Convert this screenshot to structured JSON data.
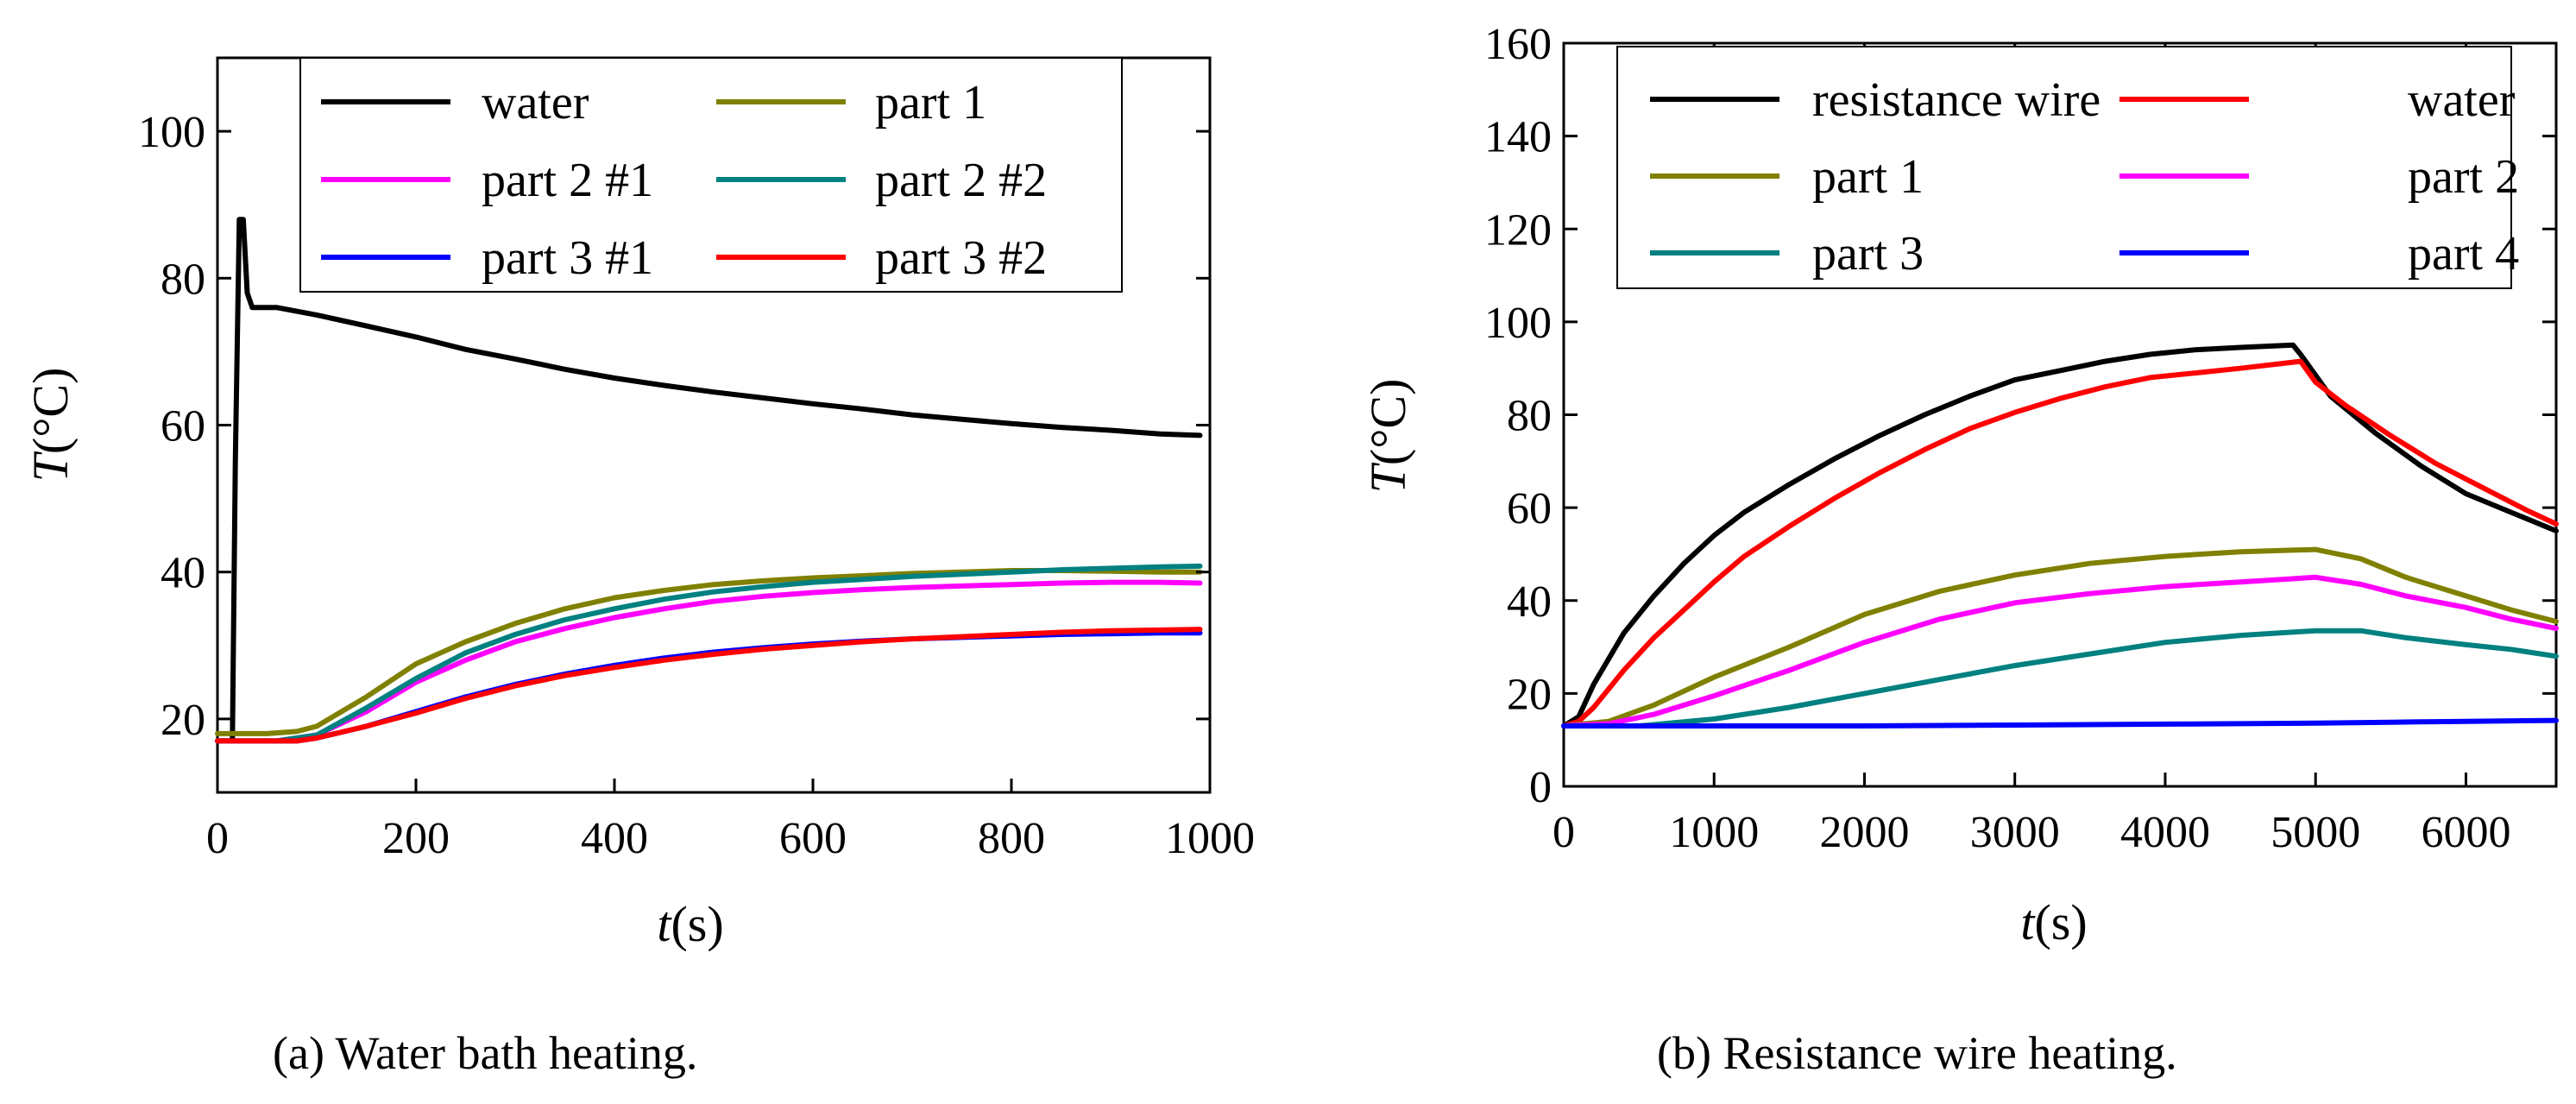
{
  "chart_data": [
    {
      "type": "line",
      "caption": "(a)    Water bath heating.",
      "xlabel_var": "t",
      "xlabel_unit": "(s)",
      "ylabel_var": "T",
      "ylabel_unit": "(°C)",
      "xlim": [
        0,
        1000
      ],
      "ylim": [
        10,
        110
      ],
      "xticks": [
        0,
        200,
        400,
        600,
        800,
        1000
      ],
      "yticks": [
        20,
        40,
        60,
        80,
        100
      ],
      "legend_position": "top",
      "series": [
        {
          "name": "water",
          "color": "#000000",
          "points": [
            [
              0,
              17
            ],
            [
              15,
              17
            ],
            [
              18,
              55
            ],
            [
              22,
              88
            ],
            [
              26,
              88
            ],
            [
              30,
              78
            ],
            [
              35,
              76
            ],
            [
              60,
              76
            ],
            [
              100,
              75
            ],
            [
              150,
              73.5
            ],
            [
              200,
              72
            ],
            [
              250,
              70.3
            ],
            [
              300,
              69
            ],
            [
              350,
              67.6
            ],
            [
              400,
              66.4
            ],
            [
              450,
              65.4
            ],
            [
              500,
              64.5
            ],
            [
              550,
              63.7
            ],
            [
              600,
              62.9
            ],
            [
              650,
              62.2
            ],
            [
              700,
              61.4
            ],
            [
              750,
              60.8
            ],
            [
              800,
              60.2
            ],
            [
              850,
              59.7
            ],
            [
              900,
              59.3
            ],
            [
              950,
              58.8
            ],
            [
              990,
              58.6
            ]
          ]
        },
        {
          "name": "part 1",
          "color": "#808000",
          "points": [
            [
              0,
              18
            ],
            [
              50,
              18
            ],
            [
              80,
              18.3
            ],
            [
              100,
              19
            ],
            [
              150,
              23
            ],
            [
              200,
              27.5
            ],
            [
              250,
              30.5
            ],
            [
              300,
              33
            ],
            [
              350,
              35
            ],
            [
              400,
              36.5
            ],
            [
              450,
              37.5
            ],
            [
              500,
              38.3
            ],
            [
              550,
              38.8
            ],
            [
              600,
              39.2
            ],
            [
              650,
              39.5
            ],
            [
              700,
              39.8
            ],
            [
              750,
              40
            ],
            [
              800,
              40.2
            ],
            [
              850,
              40.2
            ],
            [
              900,
              40.1
            ],
            [
              950,
              40
            ],
            [
              990,
              40
            ]
          ]
        },
        {
          "name": "part 2 #1",
          "color": "#ff00ff",
          "points": [
            [
              0,
              17
            ],
            [
              60,
              17
            ],
            [
              100,
              17.8
            ],
            [
              150,
              21
            ],
            [
              200,
              25
            ],
            [
              250,
              28
            ],
            [
              300,
              30.5
            ],
            [
              350,
              32.3
            ],
            [
              400,
              33.8
            ],
            [
              450,
              35
            ],
            [
              500,
              36
            ],
            [
              550,
              36.7
            ],
            [
              600,
              37.2
            ],
            [
              650,
              37.6
            ],
            [
              700,
              37.9
            ],
            [
              750,
              38.1
            ],
            [
              800,
              38.3
            ],
            [
              850,
              38.5
            ],
            [
              900,
              38.6
            ],
            [
              950,
              38.6
            ],
            [
              990,
              38.5
            ]
          ]
        },
        {
          "name": "part 2 #2",
          "color": "#008080",
          "points": [
            [
              0,
              17
            ],
            [
              60,
              17
            ],
            [
              100,
              17.8
            ],
            [
              150,
              21.5
            ],
            [
              200,
              25.5
            ],
            [
              250,
              29
            ],
            [
              300,
              31.5
            ],
            [
              350,
              33.5
            ],
            [
              400,
              35
            ],
            [
              450,
              36.3
            ],
            [
              500,
              37.3
            ],
            [
              550,
              38
            ],
            [
              600,
              38.6
            ],
            [
              650,
              39
            ],
            [
              700,
              39.4
            ],
            [
              750,
              39.7
            ],
            [
              800,
              40
            ],
            [
              850,
              40.3
            ],
            [
              900,
              40.5
            ],
            [
              950,
              40.7
            ],
            [
              990,
              40.8
            ]
          ]
        },
        {
          "name": "part 3 #1",
          "color": "#0000ff",
          "points": [
            [
              0,
              17
            ],
            [
              80,
              17
            ],
            [
              100,
              17.4
            ],
            [
              150,
              19
            ],
            [
              200,
              21
            ],
            [
              250,
              23
            ],
            [
              300,
              24.7
            ],
            [
              350,
              26.1
            ],
            [
              400,
              27.3
            ],
            [
              450,
              28.3
            ],
            [
              500,
              29.1
            ],
            [
              550,
              29.7
            ],
            [
              600,
              30.2
            ],
            [
              650,
              30.6
            ],
            [
              700,
              30.9
            ],
            [
              750,
              31.1
            ],
            [
              800,
              31.3
            ],
            [
              850,
              31.5
            ],
            [
              900,
              31.6
            ],
            [
              950,
              31.7
            ],
            [
              990,
              31.7
            ]
          ]
        },
        {
          "name": "part 3 #2",
          "color": "#ff0000",
          "points": [
            [
              0,
              17
            ],
            [
              80,
              17
            ],
            [
              100,
              17.4
            ],
            [
              150,
              19
            ],
            [
              200,
              20.8
            ],
            [
              250,
              22.8
            ],
            [
              300,
              24.5
            ],
            [
              350,
              25.9
            ],
            [
              400,
              27
            ],
            [
              450,
              28
            ],
            [
              500,
              28.8
            ],
            [
              550,
              29.5
            ],
            [
              600,
              30
            ],
            [
              650,
              30.5
            ],
            [
              700,
              30.9
            ],
            [
              750,
              31.2
            ],
            [
              800,
              31.5
            ],
            [
              850,
              31.8
            ],
            [
              900,
              32
            ],
            [
              950,
              32.1
            ],
            [
              990,
              32.2
            ]
          ]
        }
      ]
    },
    {
      "type": "line",
      "caption": "(b) Resistance wire heating.",
      "xlabel_var": "t",
      "xlabel_unit": "(s)",
      "ylabel_var": "T",
      "ylabel_unit": "(°C)",
      "xlim": [
        0,
        6600
      ],
      "ylim": [
        0,
        160
      ],
      "xticks": [
        0,
        1000,
        2000,
        3000,
        4000,
        5000,
        6000
      ],
      "yticks": [
        0,
        20,
        40,
        60,
        80,
        100,
        120,
        140,
        160
      ],
      "legend_position": "top",
      "series": [
        {
          "name": "resistance wire",
          "color": "#000000",
          "points": [
            [
              0,
              13
            ],
            [
              100,
              15
            ],
            [
              200,
              22
            ],
            [
              400,
              33
            ],
            [
              600,
              41
            ],
            [
              800,
              48
            ],
            [
              1000,
              54
            ],
            [
              1200,
              59
            ],
            [
              1500,
              65
            ],
            [
              1800,
              70.5
            ],
            [
              2100,
              75.5
            ],
            [
              2400,
              80
            ],
            [
              2700,
              84
            ],
            [
              3000,
              87.5
            ],
            [
              3300,
              89.5
            ],
            [
              3600,
              91.5
            ],
            [
              3900,
              93
            ],
            [
              4200,
              94
            ],
            [
              4500,
              94.5
            ],
            [
              4850,
              95
            ],
            [
              4900,
              93
            ],
            [
              5100,
              84
            ],
            [
              5400,
              76
            ],
            [
              5700,
              69
            ],
            [
              6000,
              63
            ],
            [
              6300,
              59
            ],
            [
              6600,
              55
            ]
          ]
        },
        {
          "name": "water",
          "color": "#ff0000",
          "points": [
            [
              0,
              13
            ],
            [
              100,
              14
            ],
            [
              200,
              17
            ],
            [
              400,
              25
            ],
            [
              600,
              32
            ],
            [
              800,
              38
            ],
            [
              1000,
              44
            ],
            [
              1200,
              49.5
            ],
            [
              1500,
              56
            ],
            [
              1800,
              62
            ],
            [
              2100,
              67.5
            ],
            [
              2400,
              72.5
            ],
            [
              2700,
              77
            ],
            [
              3000,
              80.5
            ],
            [
              3300,
              83.5
            ],
            [
              3600,
              86
            ],
            [
              3900,
              88
            ],
            [
              4200,
              89
            ],
            [
              4500,
              90
            ],
            [
              4900,
              91.5
            ],
            [
              5000,
              87
            ],
            [
              5200,
              82
            ],
            [
              5500,
              75.5
            ],
            [
              5800,
              69.5
            ],
            [
              6100,
              64.5
            ],
            [
              6400,
              59.5
            ],
            [
              6600,
              56.5
            ]
          ]
        },
        {
          "name": "part 1",
          "color": "#808000",
          "points": [
            [
              0,
              13
            ],
            [
              300,
              14
            ],
            [
              600,
              17.5
            ],
            [
              1000,
              23.5
            ],
            [
              1500,
              30
            ],
            [
              2000,
              37
            ],
            [
              2500,
              42
            ],
            [
              3000,
              45.5
            ],
            [
              3500,
              48
            ],
            [
              4000,
              49.5
            ],
            [
              4500,
              50.5
            ],
            [
              5000,
              51
            ],
            [
              5300,
              49
            ],
            [
              5600,
              45
            ],
            [
              6000,
              41
            ],
            [
              6300,
              38
            ],
            [
              6600,
              35.5
            ]
          ]
        },
        {
          "name": "part 2",
          "color": "#ff00ff",
          "points": [
            [
              0,
              13
            ],
            [
              300,
              13.5
            ],
            [
              600,
              15.5
            ],
            [
              1000,
              19.5
            ],
            [
              1500,
              25
            ],
            [
              2000,
              31
            ],
            [
              2500,
              36
            ],
            [
              3000,
              39.5
            ],
            [
              3500,
              41.5
            ],
            [
              4000,
              43
            ],
            [
              4500,
              44
            ],
            [
              5000,
              45
            ],
            [
              5300,
              43.5
            ],
            [
              5600,
              41
            ],
            [
              6000,
              38.5
            ],
            [
              6300,
              36
            ],
            [
              6600,
              34
            ]
          ]
        },
        {
          "name": "part 3",
          "color": "#008080",
          "points": [
            [
              0,
              13
            ],
            [
              500,
              13
            ],
            [
              1000,
              14.5
            ],
            [
              1500,
              17
            ],
            [
              2000,
              20
            ],
            [
              2500,
              23
            ],
            [
              3000,
              26
            ],
            [
              3500,
              28.5
            ],
            [
              4000,
              31
            ],
            [
              4500,
              32.5
            ],
            [
              5000,
              33.5
            ],
            [
              5300,
              33.5
            ],
            [
              5600,
              32
            ],
            [
              6000,
              30.5
            ],
            [
              6300,
              29.5
            ],
            [
              6600,
              28
            ]
          ]
        },
        {
          "name": "part 4",
          "color": "#0000ff",
          "points": [
            [
              0,
              13
            ],
            [
              1000,
              13
            ],
            [
              2000,
              13
            ],
            [
              3000,
              13.2
            ],
            [
              4000,
              13.4
            ],
            [
              5000,
              13.6
            ],
            [
              5500,
              13.8
            ],
            [
              6000,
              14
            ],
            [
              6600,
              14.2
            ]
          ]
        }
      ]
    }
  ]
}
